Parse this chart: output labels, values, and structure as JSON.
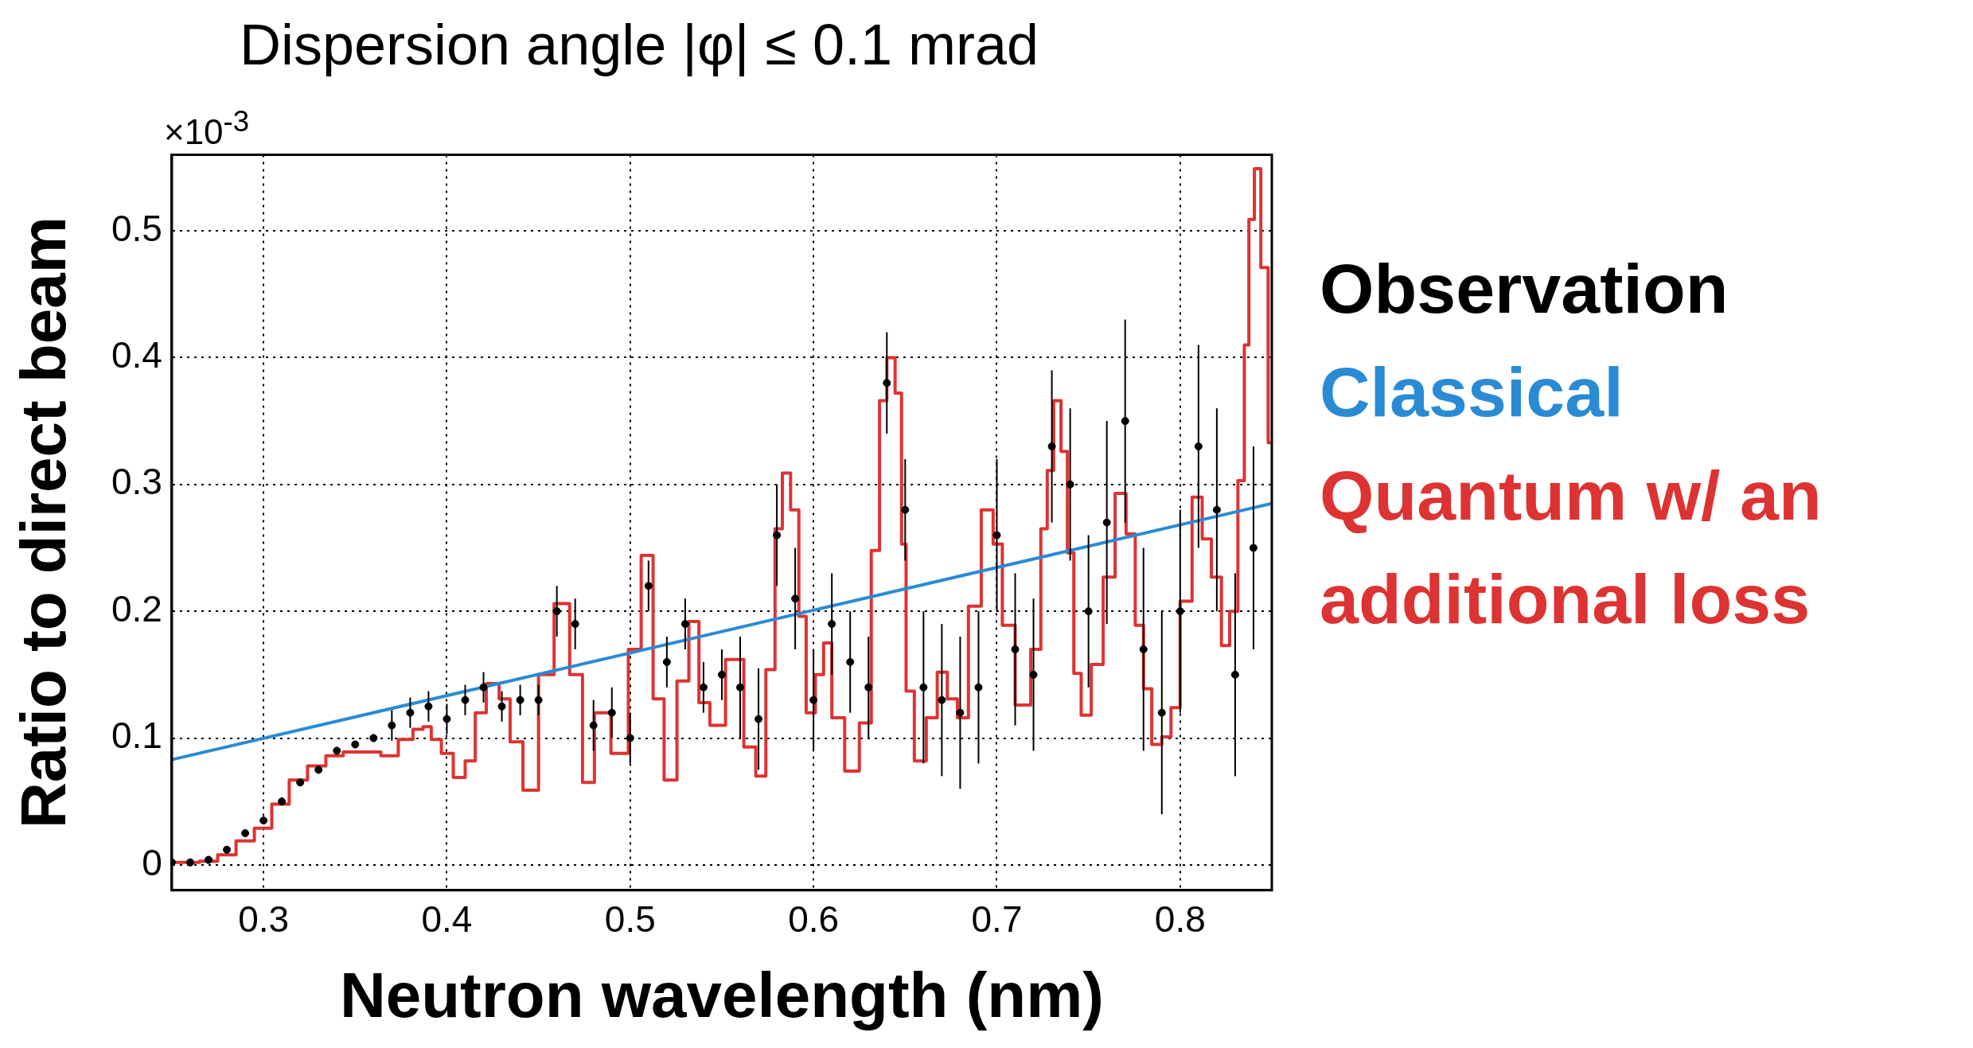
{
  "chart_data": {
    "type": "scatter",
    "title": "Dispersion angle |φ| ≤ 0.1 mrad",
    "xlabel": "Neutron wavelength (nm)",
    "ylabel": "Ratio to direct beam",
    "annotations": [
      "×10$^{-3}$"
    ],
    "xlim": [
      0.25,
      0.85
    ],
    "xticks": [
      0.3,
      0.4,
      0.5,
      0.6,
      0.7,
      0.8
    ],
    "ylim": [
      -0.02,
      0.56
    ],
    "yticks": [
      0,
      0.1,
      0.2,
      0.3,
      0.4,
      0.5
    ],
    "grid": true,
    "legend": "right",
    "series": [
      {
        "name": "Observation",
        "type": "scatter",
        "marker": "circle",
        "color": "#000000",
        "x": [
          0.25,
          0.26,
          0.27,
          0.28,
          0.29,
          0.3,
          0.31,
          0.32,
          0.33,
          0.34,
          0.35,
          0.36,
          0.37,
          0.38,
          0.39,
          0.4,
          0.41,
          0.42,
          0.43,
          0.44,
          0.45,
          0.46,
          0.47,
          0.48,
          0.49,
          0.5,
          0.51,
          0.52,
          0.53,
          0.54,
          0.55,
          0.56,
          0.57,
          0.58,
          0.59,
          0.6,
          0.61,
          0.62,
          0.63,
          0.64,
          0.65,
          0.66,
          0.67,
          0.68,
          0.69,
          0.7,
          0.71,
          0.72,
          0.73,
          0.74,
          0.75,
          0.76,
          0.77,
          0.78,
          0.79,
          0.8,
          0.81,
          0.82,
          0.83,
          0.84
        ],
        "values": [
          0.002,
          0.002,
          0.004,
          0.012,
          0.025,
          0.035,
          0.05,
          0.065,
          0.075,
          0.09,
          0.095,
          0.1,
          0.11,
          0.12,
          0.125,
          0.115,
          0.13,
          0.14,
          0.125,
          0.13,
          0.13,
          0.2,
          0.19,
          0.11,
          0.12,
          0.1,
          0.22,
          0.16,
          0.19,
          0.14,
          0.15,
          0.14,
          0.115,
          0.26,
          0.21,
          0.13,
          0.19,
          0.16,
          0.14,
          0.38,
          0.28,
          0.14,
          0.13,
          0.12,
          0.14,
          0.26,
          0.17,
          0.15,
          0.33,
          0.3,
          0.2,
          0.27,
          0.35,
          0.17,
          0.12,
          0.2,
          0.33,
          0.28,
          0.15,
          0.25
        ],
        "errors": [
          0.003,
          0.003,
          0.003,
          0.003,
          0.003,
          0.003,
          0.003,
          0.003,
          0.003,
          0.003,
          0.003,
          0.003,
          0.012,
          0.012,
          0.012,
          0.012,
          0.012,
          0.012,
          0.012,
          0.012,
          0.012,
          0.02,
          0.02,
          0.02,
          0.02,
          0.02,
          0.02,
          0.02,
          0.02,
          0.02,
          0.02,
          0.04,
          0.04,
          0.04,
          0.04,
          0.04,
          0.04,
          0.04,
          0.04,
          0.04,
          0.04,
          0.06,
          0.06,
          0.06,
          0.06,
          0.06,
          0.06,
          0.06,
          0.06,
          0.06,
          0.06,
          0.08,
          0.08,
          0.08,
          0.08,
          0.08,
          0.08,
          0.08,
          0.08,
          0.08
        ]
      },
      {
        "name": "Classical",
        "type": "line",
        "color": "#2a8bd4",
        "x": [
          0.25,
          0.85
        ],
        "values": [
          0.083,
          0.285
        ]
      },
      {
        "name": "Quantum w/ an additional loss",
        "type": "step",
        "color": "#dd3333",
        "x": [
          0.25,
          0.26,
          0.27,
          0.28,
          0.29,
          0.3,
          0.309,
          0.319,
          0.329,
          0.339,
          0.348,
          0.359,
          0.369,
          0.378,
          0.385,
          0.389,
          0.394,
          0.4,
          0.407,
          0.413,
          0.418,
          0.425,
          0.432,
          0.437,
          0.446,
          0.454,
          0.463,
          0.471,
          0.477,
          0.484,
          0.495,
          0.503,
          0.509,
          0.516,
          0.521,
          0.53,
          0.534,
          0.541,
          0.546,
          0.558,
          0.566,
          0.571,
          0.577,
          0.581,
          0.585,
          0.59,
          0.594,
          0.598,
          0.604,
          0.607,
          0.613,
          0.621,
          0.629,
          0.634,
          0.638,
          0.642,
          0.647,
          0.649,
          0.652,
          0.658,
          0.665,
          0.67,
          0.676,
          0.681,
          0.688,
          0.695,
          0.701,
          0.705,
          0.715,
          0.722,
          0.726,
          0.729,
          0.733,
          0.737,
          0.74,
          0.744,
          0.748,
          0.755,
          0.761,
          0.768,
          0.773,
          0.778,
          0.782,
          0.787,
          0.793,
          0.797,
          0.803,
          0.81,
          0.814,
          0.82,
          0.825,
          0.829,
          0.834,
          0.836,
          0.839,
          0.842,
          0.846,
          0.85
        ],
        "values": [
          0.002,
          0.002,
          0.003,
          0.008,
          0.019,
          0.029,
          0.048,
          0.067,
          0.078,
          0.086,
          0.089,
          0.089,
          0.086,
          0.099,
          0.107,
          0.109,
          0.099,
          0.088,
          0.069,
          0.082,
          0.12,
          0.143,
          0.131,
          0.097,
          0.059,
          0.15,
          0.206,
          0.15,
          0.065,
          0.12,
          0.088,
          0.17,
          0.244,
          0.131,
          0.067,
          0.145,
          0.192,
          0.128,
          0.11,
          0.162,
          0.093,
          0.07,
          0.154,
          0.265,
          0.309,
          0.28,
          0.196,
          0.12,
          0.15,
          0.175,
          0.116,
          0.074,
          0.112,
          0.248,
          0.366,
          0.4,
          0.372,
          0.253,
          0.137,
          0.082,
          0.116,
          0.152,
          0.131,
          0.116,
          0.204,
          0.28,
          0.253,
          0.189,
          0.126,
          0.17,
          0.265,
          0.311,
          0.366,
          0.326,
          0.246,
          0.151,
          0.118,
          0.158,
          0.227,
          0.293,
          0.261,
          0.189,
          0.139,
          0.095,
          0.101,
          0.124,
          0.208,
          0.29,
          0.257,
          0.227,
          0.173,
          0.2,
          0.303,
          0.41,
          0.509,
          0.549,
          0.471,
          0.333
        ]
      }
    ]
  }
}
